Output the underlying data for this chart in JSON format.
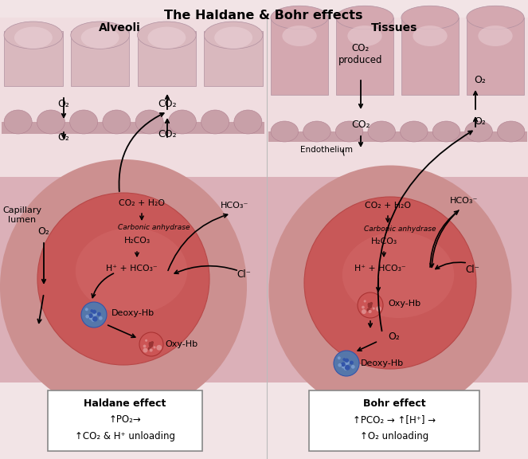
{
  "title": "The Haldane & Bohr effects",
  "title_fontsize": 11.5,
  "title_fontweight": "bold",
  "bg_color": "#f2e4e6",
  "left_panel": {
    "label": "Alveoli",
    "cap_label": "Capillary\nlumen",
    "alv_color": "#d9b8be",
    "alv_dark": "#c8a0a8",
    "alv_light": "#e8cdd2",
    "cap_color": "#c8a0a8",
    "lumen_color": "#d4a8b0",
    "rbc_color": "#c85858",
    "rbc_dark": "#b84848",
    "rbc_inner": "#d87070",
    "deoxy_color": "#5577aa",
    "deoxy_dark": "#3355aa",
    "oxy_color": "#cc5555",
    "oxy_dark": "#aa3333",
    "box_title": "Haldane effect",
    "box_line1": "↑PO₂→",
    "box_line2": "↑CO₂ & H⁺ unloading"
  },
  "right_panel": {
    "label": "Tissues",
    "endo_label": "Endothelium",
    "tissue_color": "#d4a8b0",
    "tissue_light": "#e0c0c8",
    "cap_color": "#c8a0a8",
    "lumen_color": "#d4a8b0",
    "rbc_color": "#c85858",
    "rbc_dark": "#b84848",
    "rbc_inner": "#d87070",
    "deoxy_color": "#5577aa",
    "deoxy_dark": "#3355aa",
    "oxy_color": "#cc5555",
    "oxy_dark": "#aa3333",
    "box_title": "Bohr effect",
    "box_line1": "↑PCO₂ → ↑[H⁺] →",
    "box_line2": "↑O₂ unloading"
  }
}
